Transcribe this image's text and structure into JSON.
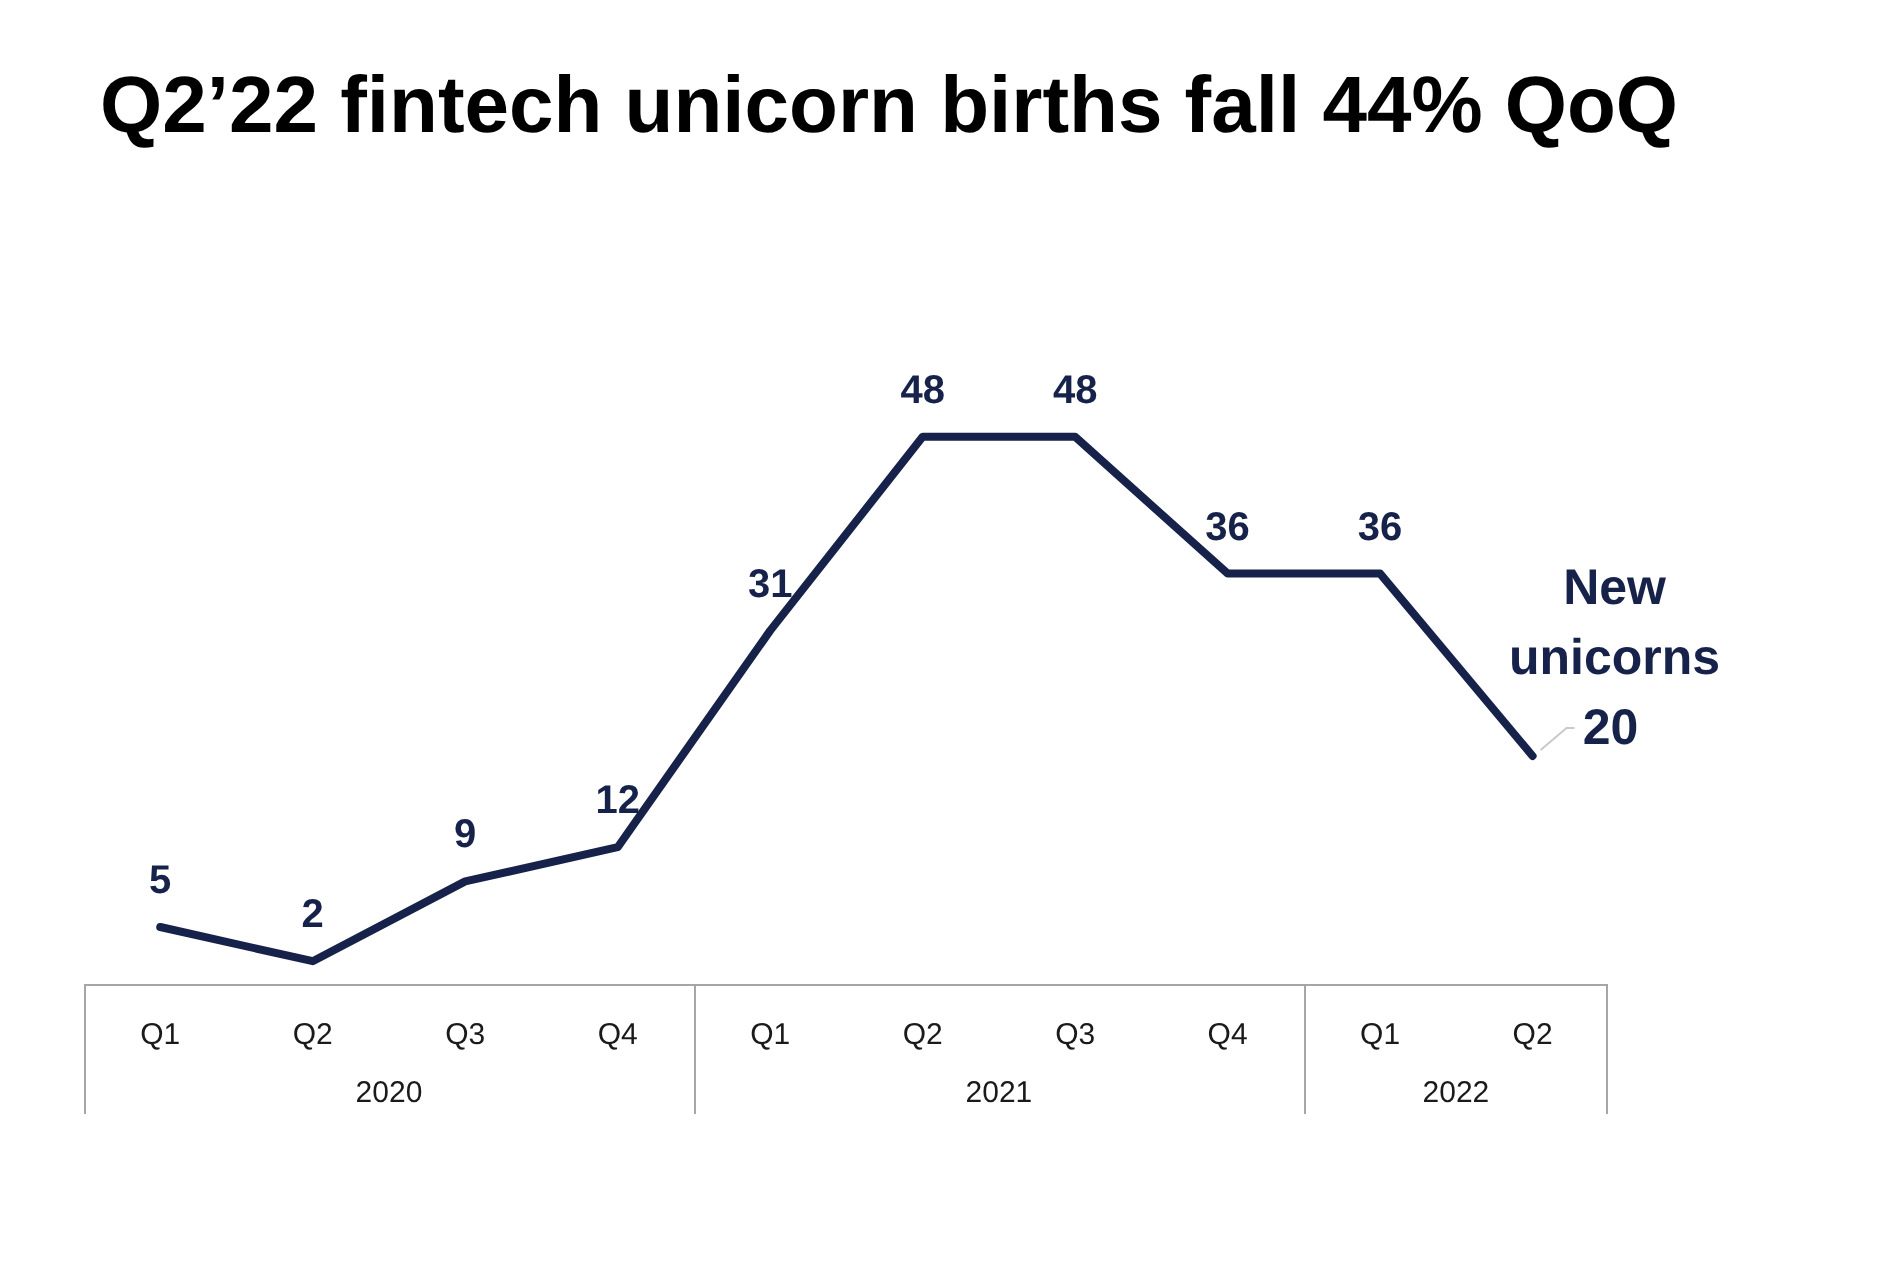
{
  "chart_data": {
    "type": "line",
    "title": "Q2’22 fintech unicorn births fall 44% QoQ",
    "x": [
      "2020-01",
      "2020-04",
      "2020-07",
      "2020-10",
      "2021-01",
      "2021-04",
      "2021-07",
      "2021-10",
      "2022-01",
      "2022-04"
    ],
    "xlim": [
      "2019-11-16",
      "2022-05-16"
    ],
    "xticks": [
      {
        "value": "2020-01",
        "label": "Q1"
      },
      {
        "value": "2020-04",
        "label": "Q2"
      },
      {
        "value": "2020-07",
        "label": "Q3"
      },
      {
        "value": "2020-10",
        "label": "Q4"
      },
      {
        "value": "2021-01",
        "label": "Q1"
      },
      {
        "value": "2021-04",
        "label": "Q2"
      },
      {
        "value": "2021-07",
        "label": "Q3"
      },
      {
        "value": "2021-10",
        "label": "Q4"
      },
      {
        "value": "2022-01",
        "label": "Q1"
      },
      {
        "value": "2022-04",
        "label": "Q2"
      }
    ],
    "series": [
      {
        "name": "New unicorns",
        "color": "#16224a",
        "values": [
          5,
          2,
          9,
          12,
          31,
          48,
          48,
          36,
          36,
          20
        ]
      }
    ],
    "annotations": [
      "2020",
      "2021",
      "2022"
    ],
    "data_labels": true,
    "tick_labels": "x",
    "grid": false,
    "legend": false,
    "marker": "none",
    "line_style": "solid"
  }
}
